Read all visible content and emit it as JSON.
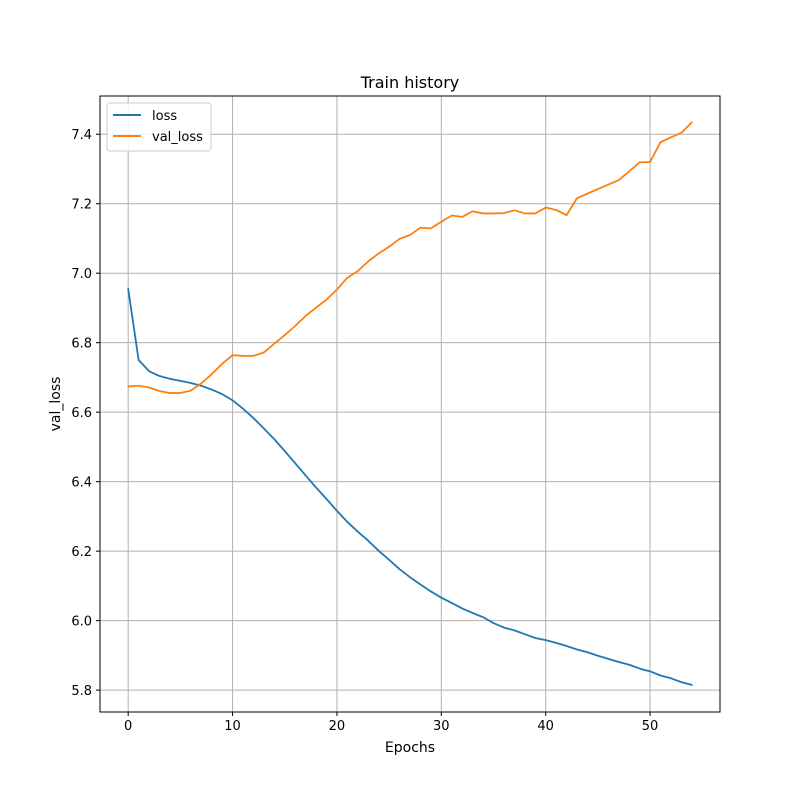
{
  "chart_data": {
    "type": "line",
    "title": "Train history",
    "xlabel": "Epochs",
    "ylabel": "val_loss",
    "xlim": [
      -2.7,
      56.7
    ],
    "ylim": [
      5.737,
      7.51
    ],
    "xticks": [
      0,
      10,
      20,
      30,
      40,
      50
    ],
    "yticks": [
      5.8,
      6.0,
      6.2,
      6.4,
      6.6,
      6.8,
      7.0,
      7.2,
      7.4
    ],
    "xtick_labels": [
      "0",
      "10",
      "20",
      "30",
      "40",
      "50"
    ],
    "ytick_labels": [
      "5.8",
      "6.0",
      "6.2",
      "6.4",
      "6.6",
      "6.8",
      "7.0",
      "7.2",
      "7.4"
    ],
    "grid": true,
    "legend_position": "upper-left",
    "x": [
      0,
      1,
      2,
      3,
      4,
      5,
      6,
      7,
      8,
      9,
      10,
      11,
      12,
      13,
      14,
      15,
      16,
      17,
      18,
      19,
      20,
      21,
      22,
      23,
      24,
      25,
      26,
      27,
      28,
      29,
      30,
      31,
      32,
      33,
      34,
      35,
      36,
      37,
      38,
      39,
      40,
      41,
      42,
      43,
      44,
      45,
      46,
      47,
      48,
      49,
      50,
      51,
      52,
      53,
      54
    ],
    "series": [
      {
        "name": "loss",
        "color": "#1f77b4",
        "values": [
          6.955,
          6.75,
          6.718,
          6.704,
          6.696,
          6.69,
          6.684,
          6.676,
          6.665,
          6.652,
          6.634,
          6.61,
          6.583,
          6.553,
          6.522,
          6.488,
          6.453,
          6.418,
          6.383,
          6.35,
          6.316,
          6.284,
          6.256,
          6.23,
          6.201,
          6.175,
          6.148,
          6.125,
          6.104,
          6.084,
          6.066,
          6.051,
          6.035,
          6.022,
          6.01,
          5.993,
          5.98,
          5.972,
          5.961,
          5.95,
          5.944,
          5.936,
          5.927,
          5.917,
          5.909,
          5.899,
          5.89,
          5.881,
          5.873,
          5.862,
          5.854,
          5.842,
          5.834,
          5.823,
          5.815
        ]
      },
      {
        "name": "val_loss",
        "color": "#ff7f0e",
        "values": [
          6.674,
          6.676,
          6.671,
          6.661,
          6.655,
          6.655,
          6.662,
          6.683,
          6.709,
          6.739,
          6.764,
          6.762,
          6.762,
          6.772,
          6.797,
          6.822,
          6.848,
          6.877,
          6.901,
          6.924,
          6.953,
          6.987,
          7.006,
          7.034,
          7.057,
          7.076,
          7.099,
          7.11,
          7.131,
          7.129,
          7.148,
          7.166,
          7.162,
          7.178,
          7.172,
          7.172,
          7.173,
          7.181,
          7.172,
          7.172,
          7.189,
          7.182,
          7.167,
          7.216,
          7.229,
          7.242,
          7.255,
          7.268,
          7.293,
          7.319,
          7.32,
          7.377,
          7.391,
          7.404,
          7.434
        ]
      }
    ]
  }
}
